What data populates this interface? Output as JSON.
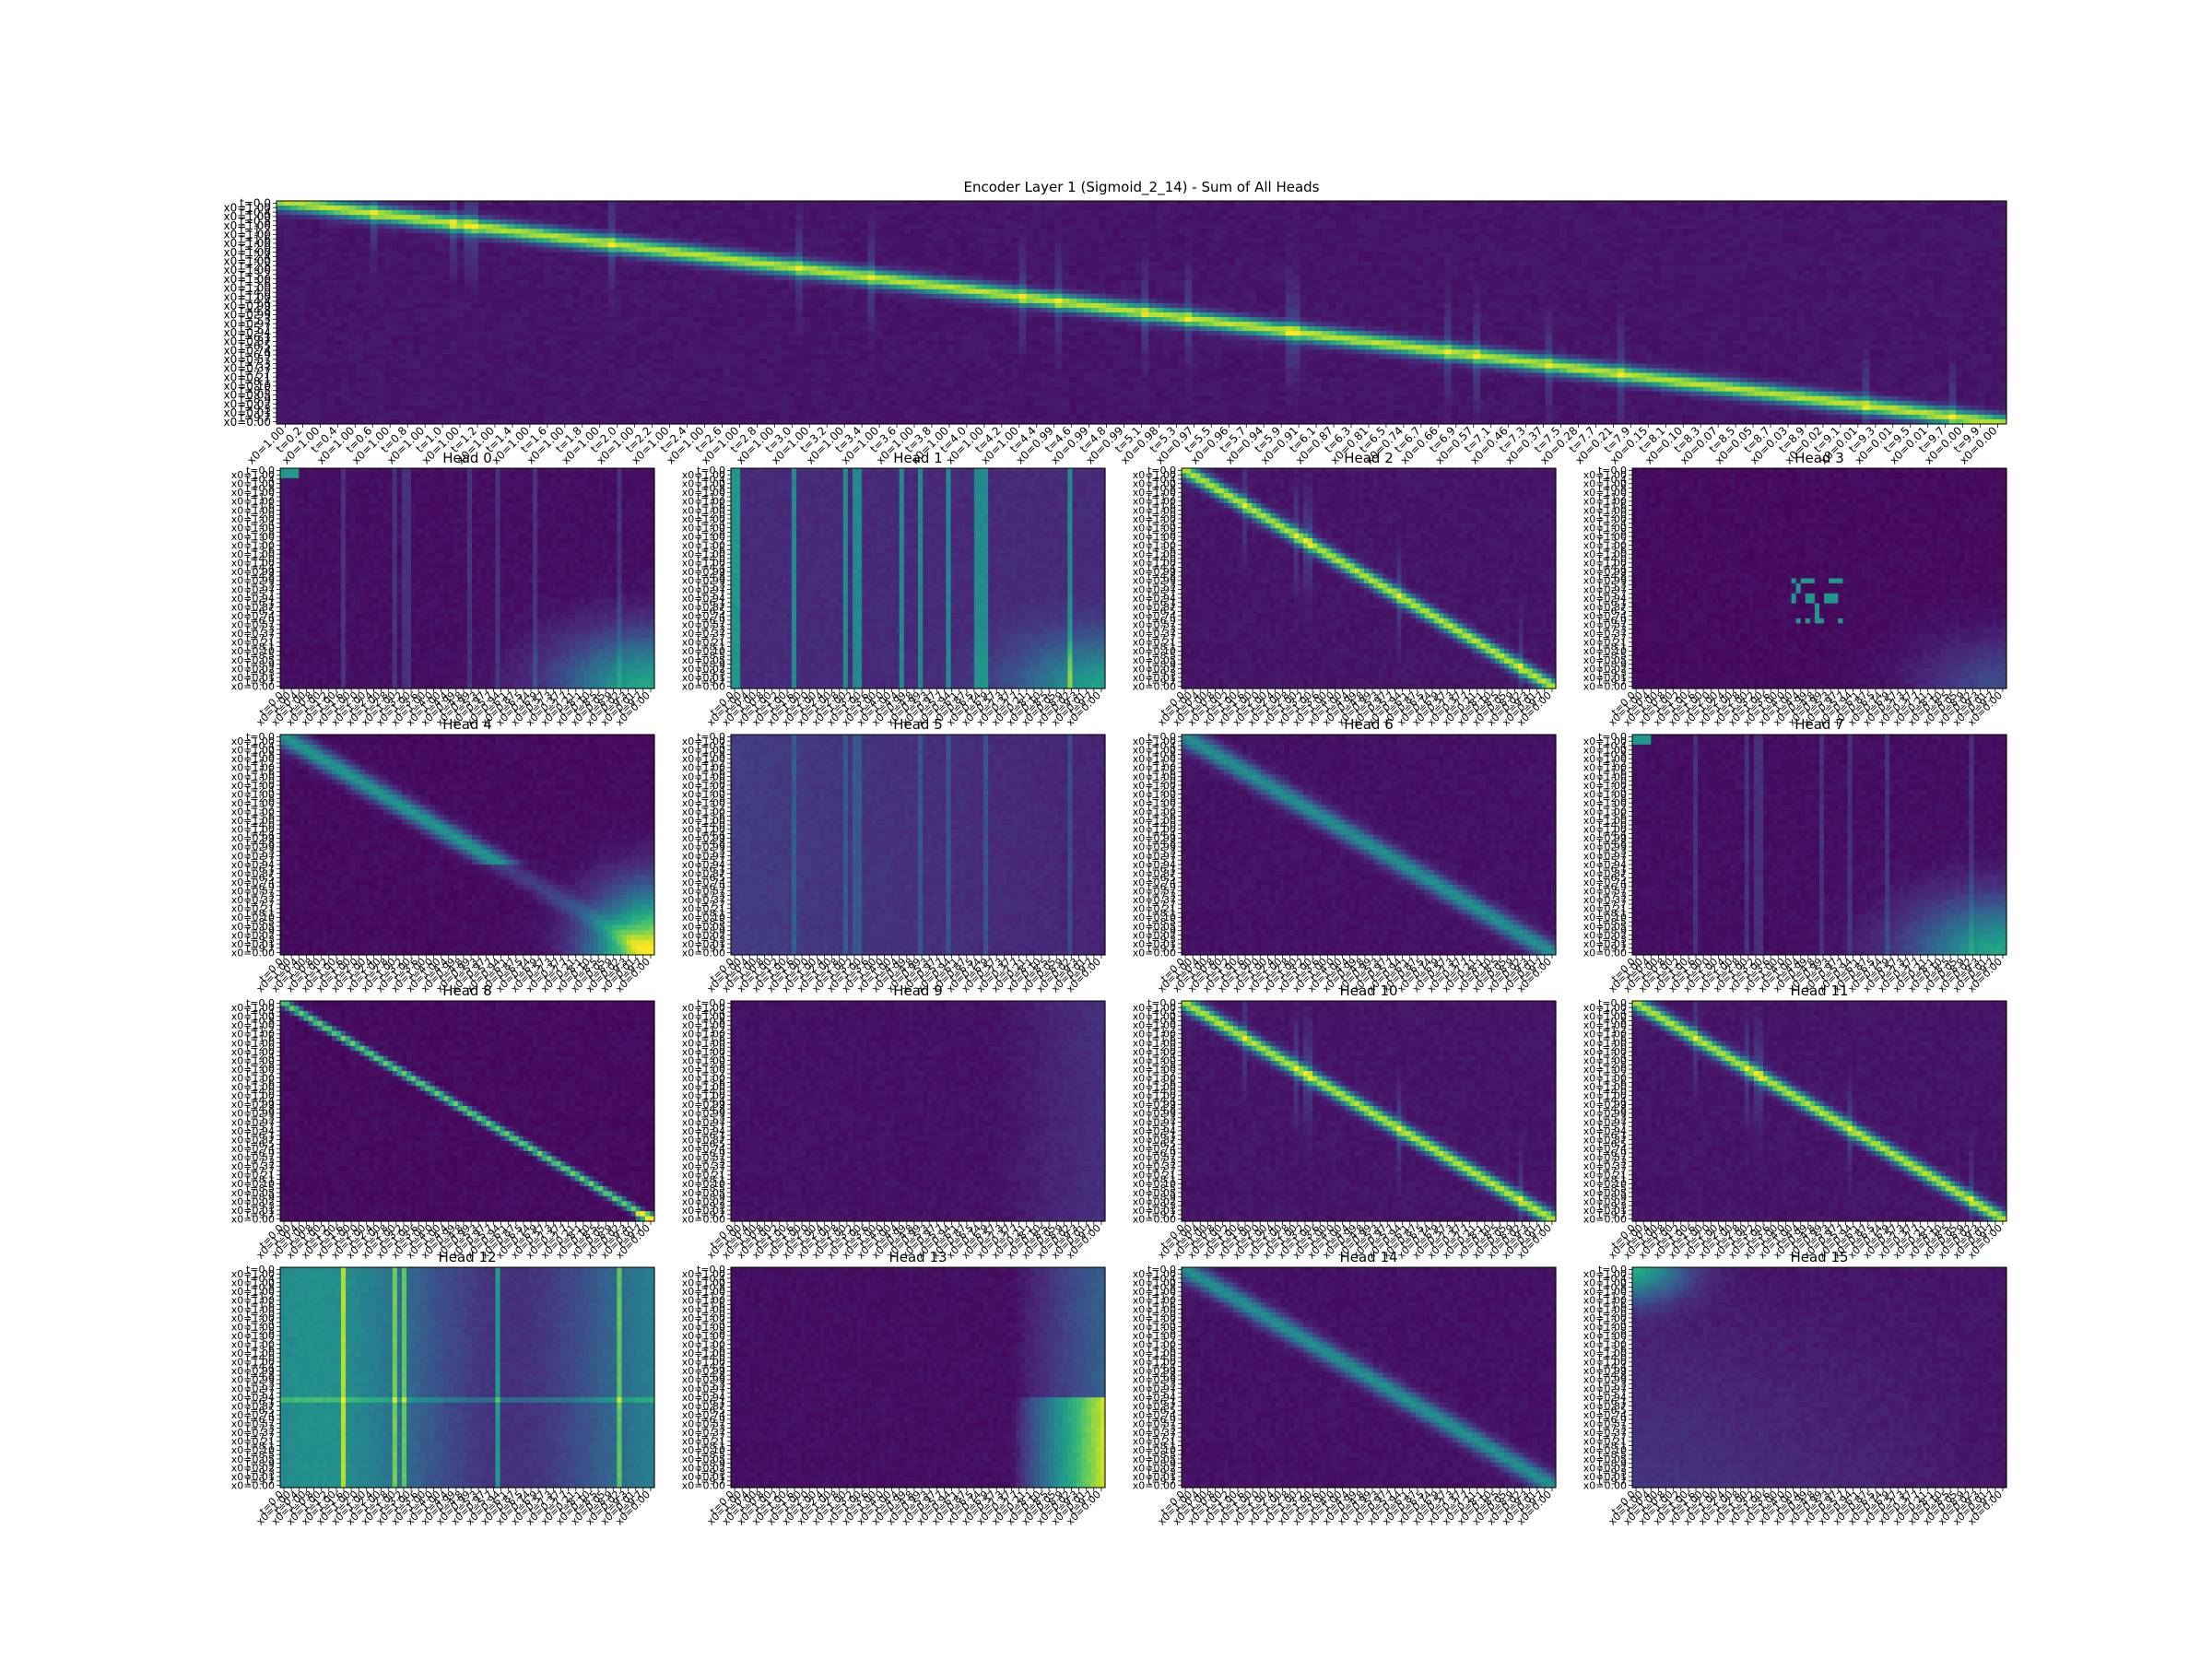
{
  "figure": {
    "background": "#ffffff",
    "colormap": "viridis"
  },
  "chart_data": [
    {
      "type": "heatmap",
      "title": "Encoder Layer 1 (Sigmoid_2_14) - Sum of All Heads",
      "pattern": "diagonal",
      "xticks": [
        "x0=1.00",
        "t=0.2",
        "x0=1.00",
        "t=0.4",
        "x0=1.00",
        "t=0.6",
        "x0=1.00",
        "t=0.8",
        "x0=1.00",
        "t=1.0",
        "x0=1.00",
        "t=1.2",
        "x0=1.00",
        "t=1.4",
        "x0=1.00",
        "t=1.6",
        "x0=1.00",
        "t=1.8",
        "x0=1.00",
        "t=2.0",
        "x0=1.00",
        "t=2.2",
        "x0=1.00",
        "t=2.4",
        "x0=1.00",
        "t=2.6",
        "x0=1.00",
        "t=2.8",
        "x0=1.00",
        "t=3.0",
        "x0=1.00",
        "t=3.2",
        "x0=1.00",
        "t=3.4",
        "x0=1.00",
        "t=3.6",
        "x0=1.00",
        "t=3.8",
        "x0=1.00",
        "t=4.0",
        "x0=1.00",
        "t=4.2",
        "x0=1.00",
        "t=4.4",
        "x0=0.99",
        "t=4.6",
        "x0=0.99",
        "t=4.8",
        "x0=0.99",
        "t=5.1",
        "x0=0.98",
        "t=5.3",
        "x0=0.97",
        "t=5.5",
        "x0=0.96",
        "t=5.7",
        "x0=0.94",
        "t=5.9",
        "x0=0.91",
        "t=6.1",
        "x0=0.87",
        "t=6.3",
        "x0=0.81",
        "t=6.5",
        "x0=0.74",
        "t=6.7",
        "x0=0.66",
        "t=6.9",
        "x0=0.57",
        "t=7.1",
        "x0=0.46",
        "t=7.3",
        "x0=0.37",
        "t=7.5",
        "x0=0.28",
        "t=7.7",
        "x0=0.21",
        "t=7.9",
        "x0=0.15",
        "t=8.1",
        "x0=0.10",
        "t=8.3",
        "x0=0.07",
        "t=8.5",
        "x0=0.05",
        "t=8.7",
        "x0=0.03",
        "t=8.9",
        "x0=0.02",
        "t=9.1",
        "x0=0.01",
        "t=9.3",
        "x0=0.01",
        "t=9.5",
        "x0=0.01",
        "t=9.7",
        "x0=0.00",
        "t=9.9",
        "x0=0.00"
      ],
      "yticks": [
        "t=0.0",
        "x0=1.00",
        "t=0.4",
        "x0=1.00",
        "t=0.8",
        "x0=1.00",
        "t=1.2",
        "x0=1.00",
        "t=1.6",
        "x0=1.00",
        "t=2.0",
        "x0=1.00",
        "t=2.4",
        "x0=1.00",
        "t=2.8",
        "x0=1.00",
        "t=3.2",
        "x0=1.00",
        "t=3.6",
        "x0=1.00",
        "t=4.0",
        "x0=1.00",
        "t=4.4",
        "x0=0.99",
        "t=4.8",
        "x0=0.99",
        "t=5.3",
        "x0=0.97",
        "t=5.7",
        "x0=0.94",
        "t=6.1",
        "x0=0.87",
        "t=6.5",
        "x0=0.74",
        "t=6.9",
        "x0=0.57",
        "t=7.3",
        "x0=0.37",
        "t=7.7",
        "x0=0.21",
        "t=8.1",
        "x0=0.10",
        "t=8.5",
        "x0=0.05",
        "t=8.9",
        "x0=0.02",
        "t=9.3",
        "x0=0.01",
        "t=9.7",
        "x0=0.00"
      ]
    },
    {
      "type": "heatmap",
      "title": "Head 0",
      "pattern": "corner-br-soft"
    },
    {
      "type": "heatmap",
      "title": "Head 1",
      "pattern": "columns"
    },
    {
      "type": "heatmap",
      "title": "Head 2",
      "pattern": "diagonal"
    },
    {
      "type": "heatmap",
      "title": "Head 3",
      "pattern": "dots"
    },
    {
      "type": "heatmap",
      "title": "Head 4",
      "pattern": "corner-br-strong"
    },
    {
      "type": "heatmap",
      "title": "Head 5",
      "pattern": "faint-columns"
    },
    {
      "type": "heatmap",
      "title": "Head 6",
      "pattern": "diagonal-soft"
    },
    {
      "type": "heatmap",
      "title": "Head 7",
      "pattern": "corner-br-soft"
    },
    {
      "type": "heatmap",
      "title": "Head 8",
      "pattern": "diagonal-sharp"
    },
    {
      "type": "heatmap",
      "title": "Head 9",
      "pattern": "faint-right"
    },
    {
      "type": "heatmap",
      "title": "Head 10",
      "pattern": "diagonal"
    },
    {
      "type": "heatmap",
      "title": "Head 11",
      "pattern": "diagonal"
    },
    {
      "type": "heatmap",
      "title": "Head 12",
      "pattern": "broad"
    },
    {
      "type": "heatmap",
      "title": "Head 13",
      "pattern": "right-block"
    },
    {
      "type": "heatmap",
      "title": "Head 14",
      "pattern": "diagonal-soft"
    },
    {
      "type": "heatmap",
      "title": "Head 15",
      "pattern": "corner-tl-soft"
    }
  ],
  "head_ticks": {
    "x": [
      "t=0.0",
      "x0=1.00",
      "t=0.4",
      "x0=1.00",
      "t=0.8",
      "x0=1.00",
      "t=1.2",
      "x0=1.00",
      "t=1.6",
      "x0=1.00",
      "t=2.0",
      "x0=1.00",
      "t=2.4",
      "x0=1.00",
      "t=2.8",
      "x0=1.00",
      "t=3.2",
      "x0=1.00",
      "t=3.6",
      "x0=1.00",
      "t=4.0",
      "x0=1.00",
      "t=4.4",
      "x0=0.99",
      "t=4.8",
      "x0=0.99",
      "t=5.3",
      "x0=0.97",
      "t=5.7",
      "x0=0.94",
      "t=6.1",
      "x0=0.87",
      "t=6.5",
      "x0=0.74",
      "t=6.9",
      "x0=0.57",
      "t=7.3",
      "x0=0.37",
      "t=7.7",
      "x0=0.21",
      "t=8.1",
      "x0=0.10",
      "t=8.5",
      "x0=0.05",
      "t=8.9",
      "x0=0.02",
      "t=9.3",
      "x0=0.01",
      "t=9.7",
      "x0=0.00"
    ],
    "y": [
      "t=0.0",
      "x0=1.00",
      "t=0.4",
      "x0=1.00",
      "t=0.8",
      "x0=1.00",
      "t=1.2",
      "x0=1.00",
      "t=1.6",
      "x0=1.00",
      "t=2.0",
      "x0=1.00",
      "t=2.4",
      "x0=1.00",
      "t=2.8",
      "x0=1.00",
      "t=3.2",
      "x0=1.00",
      "t=3.6",
      "x0=1.00",
      "t=4.0",
      "x0=1.00",
      "t=4.4",
      "x0=0.99",
      "t=4.8",
      "x0=0.99",
      "t=5.3",
      "x0=0.97",
      "t=5.7",
      "x0=0.94",
      "t=6.1",
      "x0=0.87",
      "t=6.5",
      "x0=0.74",
      "t=6.9",
      "x0=0.57",
      "t=7.3",
      "x0=0.37",
      "t=7.7",
      "x0=0.21",
      "t=8.1",
      "x0=0.10",
      "t=8.5",
      "x0=0.05",
      "t=8.9",
      "x0=0.02",
      "t=9.3",
      "x0=0.01",
      "t=9.7",
      "x0=0.00"
    ]
  }
}
